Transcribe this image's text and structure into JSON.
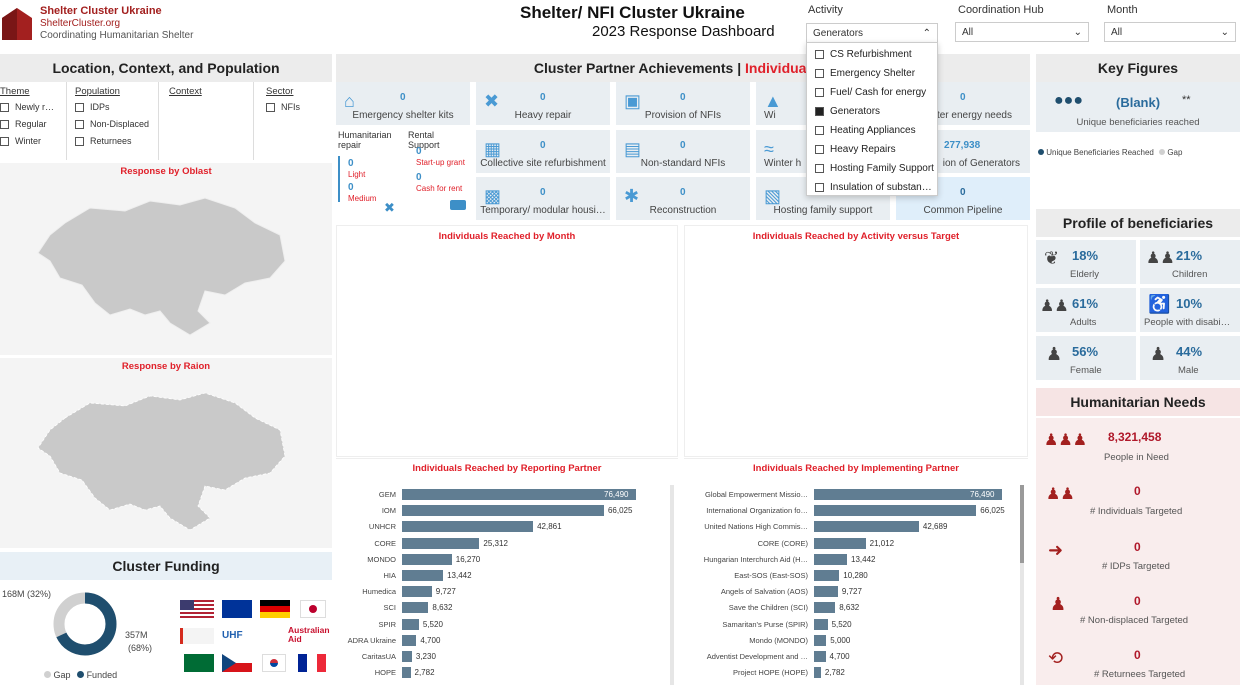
{
  "header": {
    "org_name": "Shelter Cluster Ukraine",
    "org_url": "ShelterCluster.org",
    "org_tagline": "Coordinating Humanitarian Shelter",
    "title": "Shelter/ NFI Cluster Ukraine",
    "subtitle": "2023 Response Dashboard"
  },
  "slicers": {
    "activity": {
      "label": "Activity",
      "value": "Generators"
    },
    "hub": {
      "label": "Coordination Hub",
      "value": "All"
    },
    "month": {
      "label": "Month",
      "value": "All"
    }
  },
  "activity_dropdown": [
    {
      "label": "CS Refurbishment",
      "checked": false
    },
    {
      "label": "Emergency Shelter",
      "checked": false
    },
    {
      "label": "Fuel/ Cash for energy",
      "checked": false
    },
    {
      "label": "Generators",
      "checked": true
    },
    {
      "label": "Heating Appliances",
      "checked": false
    },
    {
      "label": "Heavy Repairs",
      "checked": false
    },
    {
      "label": "Hosting Family Support",
      "checked": false
    },
    {
      "label": "Insulation of substan…",
      "checked": false
    }
  ],
  "left": {
    "title": "Location, Context, and Population",
    "filters": {
      "theme": {
        "title": "Theme",
        "items": [
          "Newly r…",
          "Regular",
          "Winter"
        ]
      },
      "population": {
        "title": "Population",
        "items": [
          "IDPs",
          "Non-Displaced",
          "Returnees"
        ]
      },
      "context": {
        "title": "Context"
      },
      "sector": {
        "title": "Sector",
        "items": [
          "NFIs"
        ]
      }
    },
    "map1_title": "Response by Oblast",
    "map2_title": "Response by Raion",
    "funding_title": "Cluster Funding",
    "funding": {
      "gap_label": "168M (32%)",
      "funded_label_a": "357M",
      "funded_label_b": "(68%)",
      "legend_gap": "Gap",
      "legend_funded": "Funded",
      "gap_pct": 32,
      "funded_pct": 68,
      "color_gap": "#d0d0d0",
      "color_funded": "#1f4e6e"
    }
  },
  "center": {
    "title_a": "Cluster Partner Achievements | ",
    "title_b": "Individuals R",
    "cards": [
      {
        "label": "Emergency shelter kits",
        "value": "0",
        "icon": "house-icon"
      },
      {
        "label": "Heavy repair",
        "value": "0",
        "icon": "tools-icon"
      },
      {
        "label": "Provision of NFIs",
        "value": "0",
        "icon": "nfi-icon"
      },
      {
        "label": "Wi",
        "value": "",
        "icon": "shirt-icon"
      },
      {
        "label": "ter energy needs",
        "value": "0",
        "icon": ""
      },
      {
        "label": "Collective site refurbishment",
        "value": "0",
        "icon": "building-icon"
      },
      {
        "label": "Non-standard NFIs",
        "value": "0",
        "icon": "box-icon"
      },
      {
        "label": "Winter h",
        "value": "",
        "icon": "heat-icon"
      },
      {
        "label": "ion of Generators",
        "value": "277,938",
        "icon": ""
      },
      {
        "label": "Temporary/ modular housi…",
        "value": "0",
        "icon": "modular-icon"
      },
      {
        "label": "Reconstruction",
        "value": "0",
        "icon": "reconstruct-icon"
      },
      {
        "label": "Hosting family support",
        "value": "",
        "icon": "money-icon"
      },
      {
        "label": "Common Pipeline",
        "value": "0",
        "icon": ""
      }
    ],
    "hum_repair": {
      "title": "Humanitarian repair",
      "light_val": "0",
      "light": "Light",
      "medium_val": "0",
      "medium": "Medium"
    },
    "rental": {
      "title": "Rental Support",
      "start_val": "0",
      "start": "Start-up grant",
      "cash_val": "0",
      "cash": "Cash for rent"
    },
    "chart_month_title": "Individuals Reached by Month",
    "chart_activity_title": "Individuals Reached by Activity versus Target",
    "chart_reporting_title": "Individuals Reached by Reporting Partner",
    "chart_implementing_title": "Individuals Reached by Implementing Partner"
  },
  "chart_data": [
    {
      "type": "bar",
      "title": "Individuals Reached by Reporting Partner",
      "categories": [
        "GEM",
        "IOM",
        "UNHCR",
        "CORE",
        "MONDO",
        "HIA",
        "Humedica",
        "SCI",
        "SPIR",
        "ADRA Ukraine",
        "CaritasUA",
        "HOPE"
      ],
      "values": [
        76490,
        66025,
        42861,
        25312,
        16270,
        13442,
        9727,
        8632,
        5520,
        4700,
        3230,
        2782
      ],
      "labels": [
        "76,490",
        "66,025",
        "42,861",
        "25,312",
        "16,270",
        "13,442",
        "9,727",
        "8,632",
        "5,520",
        "4,700",
        "3,230",
        "2,782"
      ]
    },
    {
      "type": "bar",
      "title": "Individuals Reached by Implementing Partner",
      "categories": [
        "Global Empowerment Missio…",
        "International Organization fo…",
        "United Nations High Commis…",
        "CORE (CORE)",
        "Hungarian Interchurch Aid (H…",
        "East-SOS (East-SOS)",
        "Angels of Salvation (AOS)",
        "Save the Children (SCI)",
        "Samaritan's Purse (SPIR)",
        "Mondo (MONDO)",
        "Adventist Development and …",
        "Project HOPE (HOPE)"
      ],
      "values": [
        76490,
        66025,
        42689,
        21012,
        13442,
        10280,
        9727,
        8632,
        5520,
        5000,
        4700,
        2782
      ],
      "labels": [
        "76,490",
        "66,025",
        "42,689",
        "21,012",
        "13,442",
        "10,280",
        "9,727",
        "8,632",
        "5,520",
        "5,000",
        "4,700",
        "2,782"
      ]
    }
  ],
  "right": {
    "key_title": "Key Figures",
    "blank": "(Blank)",
    "stars": "**",
    "unique_label": "Unique beneficiaries reached",
    "legend_a": "Unique Beneficiaries Reached",
    "legend_b": "Gap",
    "profile_title": "Profile of beneficiaries",
    "profile": [
      {
        "value": "18%",
        "label": "Elderly"
      },
      {
        "value": "21%",
        "label": "Children"
      },
      {
        "value": "61%",
        "label": "Adults"
      },
      {
        "value": "10%",
        "label": "People with disabi…"
      },
      {
        "value": "56%",
        "label": "Female"
      },
      {
        "value": "44%",
        "label": "Male"
      }
    ],
    "needs_title": "Humanitarian Needs",
    "needs": [
      {
        "value": "8,321,458",
        "label": "People in Need"
      },
      {
        "value": "0",
        "label": "# Individuals Targeted"
      },
      {
        "value": "0",
        "label": "# IDPs Targeted"
      },
      {
        "value": "0",
        "label": "# Non-displaced Targeted"
      },
      {
        "value": "0",
        "label": "# Returnees Targeted"
      }
    ]
  }
}
